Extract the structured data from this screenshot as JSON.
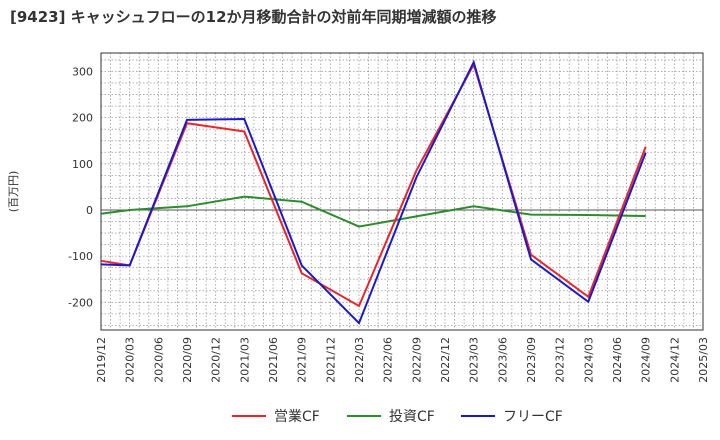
{
  "title": "[9423]  キャッシュフローの12か月移動合計の対前年同期増減額の推移",
  "chart_data": {
    "type": "line",
    "ylabel": "(百万円)",
    "xlabel": "",
    "ylim": [
      -260,
      340
    ],
    "yticks": [
      300,
      200,
      100,
      0,
      -100,
      -200
    ],
    "ytick_labels": [
      "300",
      "200",
      "100",
      "0",
      "-100",
      "-200"
    ],
    "categories": [
      "2019/12",
      "2020/03",
      "2020/06",
      "2020/09",
      "2020/12",
      "2021/03",
      "2021/06",
      "2021/09",
      "2021/12",
      "2022/03",
      "2022/06",
      "2022/09",
      "2022/12",
      "2023/03",
      "2023/06",
      "2023/09",
      "2023/12",
      "2024/03",
      "2024/06",
      "2024/09",
      "2024/12",
      "2025/03"
    ],
    "grid": true,
    "legend_position": "bottom",
    "series": [
      {
        "name": "営業CF",
        "color": "#e8262a",
        "values": [
          -110,
          -120,
          null,
          188,
          null,
          170,
          null,
          -137,
          null,
          -208,
          null,
          85,
          null,
          315,
          null,
          -97,
          null,
          -188,
          null,
          137,
          null,
          null
        ]
      },
      {
        "name": "投資CF",
        "color": "#2e8b2e",
        "values": [
          -8,
          0,
          null,
          8,
          null,
          29,
          null,
          18,
          null,
          -36,
          null,
          -14,
          null,
          8,
          null,
          -10,
          null,
          -11,
          null,
          -13,
          null,
          null
        ]
      },
      {
        "name": "フリーCF",
        "color": "#1a1acc",
        "values": [
          -118,
          -120,
          null,
          195,
          null,
          197,
          null,
          -120,
          null,
          -245,
          null,
          70,
          null,
          320,
          null,
          -107,
          null,
          -199,
          null,
          124,
          null,
          null
        ]
      }
    ]
  }
}
